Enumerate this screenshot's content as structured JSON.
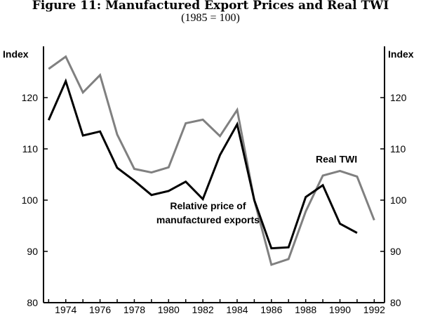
{
  "chart_data": {
    "type": "line",
    "title": "Figure 11: Manufactured Export Prices and Real TWI",
    "subtitle": "(1985 = 100)",
    "ylabel_left": "Index",
    "ylabel_right": "Index",
    "ylim": [
      80,
      130
    ],
    "xlim": [
      1972.7,
      1992.6
    ],
    "yticks": [
      80,
      90,
      100,
      110,
      120
    ],
    "xticks": [
      1974,
      1976,
      1978,
      1980,
      1982,
      1984,
      1986,
      1988,
      1990,
      1992
    ],
    "series": [
      {
        "name": "Relative price of manufactured exports",
        "label_lines": [
          "Relative price of",
          "manufactured exports"
        ],
        "color": "#000000",
        "x": [
          1973,
          1974,
          1975,
          1976,
          1977,
          1978,
          1979,
          1980,
          1981,
          1982,
          1983,
          1984,
          1985,
          1986,
          1987,
          1988,
          1989,
          1990,
          1991
        ],
        "values": [
          115.6,
          123.2,
          112.6,
          113.4,
          106.3,
          103.8,
          101.0,
          101.8,
          103.6,
          100.2,
          108.8,
          114.8,
          100.0,
          90.6,
          90.8,
          100.6,
          102.9,
          95.4,
          93.6
        ]
      },
      {
        "name": "Real TWI",
        "label_lines": [
          "Real TWI"
        ],
        "color": "#808080",
        "x": [
          1973,
          1974,
          1975,
          1976,
          1977,
          1978,
          1979,
          1980,
          1981,
          1982,
          1983,
          1984,
          1985,
          1986,
          1987,
          1988,
          1989,
          1990,
          1991,
          1992
        ],
        "values": [
          125.6,
          128.0,
          121.0,
          124.4,
          112.8,
          106.1,
          105.4,
          106.4,
          115.0,
          115.7,
          112.5,
          117.6,
          100.0,
          87.4,
          88.5,
          97.8,
          104.8,
          105.7,
          104.6,
          96.1
        ]
      }
    ]
  }
}
